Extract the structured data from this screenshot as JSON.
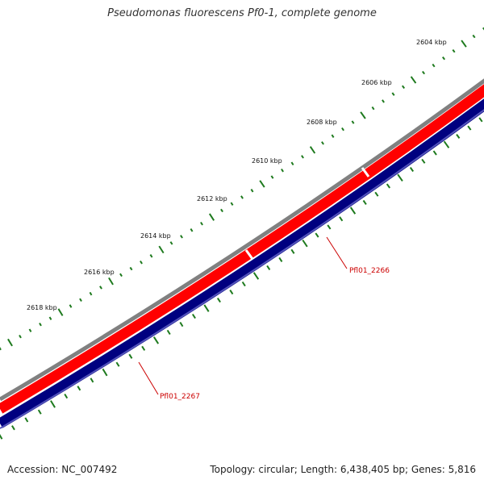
{
  "title": "Pseudomonas fluorescens Pf0-1, complete genome",
  "footer": {
    "accession": "Accession: NC_007492",
    "stats": "Topology: circular; Length: 6,438,405 bp; Genes: 5,816"
  },
  "colors": {
    "backbone": "#808080",
    "gene_strand": "#ff0000",
    "cds_strand": "#000080",
    "scale_ticks": "#1e7a1e",
    "gene_label": "#cc0000"
  },
  "scale_labels": [
    "2604 kbp",
    "2606 kbp",
    "2608 kbp",
    "2610 kbp",
    "2612 kbp",
    "2614 kbp",
    "2616 kbp",
    "2618 kbp"
  ],
  "genes": [
    {
      "label": "Pfl01_2266"
    },
    {
      "label": "Pfl01_2267"
    }
  ]
}
